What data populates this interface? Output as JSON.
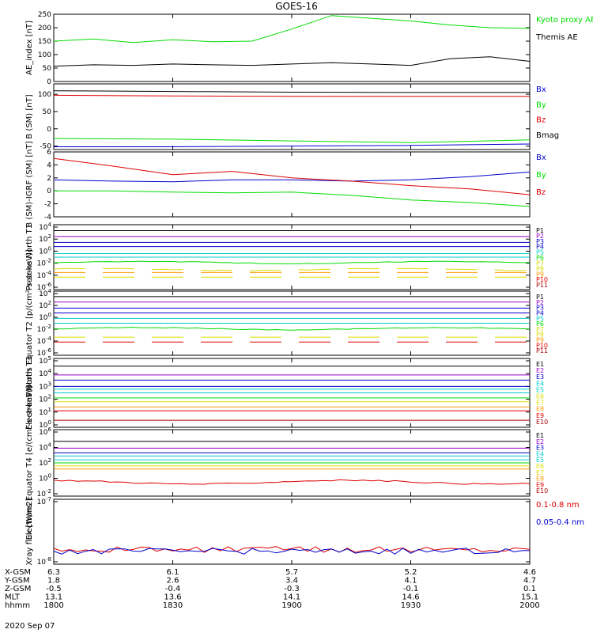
{
  "title": "GOES-16",
  "colors": {
    "axis": "#000000",
    "black": "#000000",
    "red": "#e00000",
    "green": "#00dd00",
    "blue": "#0000cc",
    "cyan": "#00cccc",
    "yellow": "#dddd00",
    "orange": "#ff9900",
    "purple": "#9900cc",
    "darkred": "#aa0000"
  },
  "time_axis": {
    "start": "1800",
    "end": "2000",
    "ticks": [
      "1800",
      "1830",
      "1900",
      "1930",
      "2000"
    ]
  },
  "chart_data": [
    {
      "type": "line",
      "ylabel": "AE_index [nT]",
      "ylim": [
        0,
        250
      ],
      "yticks": [
        "250",
        "200",
        "150",
        "100",
        "50",
        "0"
      ],
      "legend": [
        {
          "label": "Kyoto proxy AE",
          "color": "green"
        },
        {
          "label": "Themis AE",
          "color": "black"
        }
      ],
      "series": [
        {
          "name": "Kyoto proxy AE",
          "color": "green",
          "x": [
            "1800",
            "1810",
            "1820",
            "1830",
            "1840",
            "1850",
            "1900",
            "1910",
            "1920",
            "1930",
            "1940",
            "1950",
            "2000"
          ],
          "values": [
            150,
            158,
            145,
            155,
            148,
            150,
            195,
            245,
            235,
            225,
            210,
            200,
            198
          ]
        },
        {
          "name": "Themis AE",
          "color": "black",
          "x": [
            "1800",
            "1810",
            "1820",
            "1830",
            "1840",
            "1850",
            "1900",
            "1910",
            "1920",
            "1930",
            "1940",
            "1950",
            "2000"
          ],
          "values": [
            57,
            62,
            60,
            65,
            62,
            60,
            65,
            70,
            65,
            60,
            85,
            92,
            75
          ]
        }
      ]
    },
    {
      "type": "line",
      "ylabel": "B (SM) [nT]",
      "ylim": [
        -60,
        130
      ],
      "yticks": [
        "100",
        "50",
        "0",
        "-50"
      ],
      "legend": [
        {
          "label": "Bx",
          "color": "blue"
        },
        {
          "label": "By",
          "color": "green"
        },
        {
          "label": "Bz",
          "color": "red"
        },
        {
          "label": "Bmag",
          "color": "black"
        }
      ],
      "series": [
        {
          "name": "Bx",
          "color": "blue",
          "x": [
            "1800",
            "1830",
            "1900",
            "1930",
            "2000"
          ],
          "values": [
            -52,
            -52,
            -50,
            -48,
            -44
          ]
        },
        {
          "name": "By",
          "color": "green",
          "x": [
            "1800",
            "1830",
            "1900",
            "1930",
            "2000"
          ],
          "values": [
            -28,
            -30,
            -35,
            -40,
            -32
          ]
        },
        {
          "name": "Bz",
          "color": "red",
          "x": [
            "1800",
            "1830",
            "1900",
            "1930",
            "2000"
          ],
          "values": [
            97,
            95,
            94,
            94,
            94
          ]
        },
        {
          "name": "Bmag",
          "color": "black",
          "x": [
            "1800",
            "1830",
            "1900",
            "1930",
            "2000"
          ],
          "values": [
            110,
            108,
            106,
            105,
            105
          ]
        }
      ]
    },
    {
      "type": "line",
      "ylabel": "B (SM)-IGRF (SM) [nT]",
      "ylim": [
        -4,
        6
      ],
      "yticks": [
        "6",
        "4",
        "2",
        "0",
        "-2",
        "-4"
      ],
      "legend": [
        {
          "label": "Bx",
          "color": "blue"
        },
        {
          "label": "By",
          "color": "green"
        },
        {
          "label": "Bz",
          "color": "red"
        }
      ],
      "series": [
        {
          "name": "Bx",
          "color": "blue",
          "x": [
            "1800",
            "1815",
            "1830",
            "1845",
            "1900",
            "1915",
            "1930",
            "1945",
            "2000"
          ],
          "values": [
            1.7,
            1.5,
            1.4,
            1.7,
            1.7,
            1.5,
            1.7,
            2.2,
            2.9
          ]
        },
        {
          "name": "By",
          "color": "green",
          "x": [
            "1800",
            "1815",
            "1830",
            "1845",
            "1900",
            "1915",
            "1930",
            "1945",
            "2000"
          ],
          "values": [
            0.0,
            0.0,
            -0.2,
            -0.3,
            -0.2,
            -0.7,
            -1.4,
            -1.8,
            -2.4
          ]
        },
        {
          "name": "Bz",
          "color": "red",
          "x": [
            "1800",
            "1815",
            "1830",
            "1845",
            "1900",
            "1915",
            "1930",
            "1945",
            "2000"
          ],
          "values": [
            5.0,
            3.8,
            2.5,
            3.0,
            2.0,
            1.5,
            0.8,
            0.3,
            -0.6
          ]
        }
      ]
    },
    {
      "type": "line",
      "log": true,
      "ylabel": "Protons North T1",
      "yticks": [
        "10^4",
        "10^2",
        "10^0",
        "10^-2",
        "10^-4",
        "10^-6"
      ],
      "legend": [
        {
          "label": "P1",
          "color": "black"
        },
        {
          "label": "P2",
          "color": "purple"
        },
        {
          "label": "P3",
          "color": "blue"
        },
        {
          "label": "P4",
          "color": "blue"
        },
        {
          "label": "P5",
          "color": "cyan"
        },
        {
          "label": "P6",
          "color": "green"
        },
        {
          "label": "P7",
          "color": "yellow"
        },
        {
          "label": "P8",
          "color": "yellow"
        },
        {
          "label": "P9",
          "color": "orange"
        },
        {
          "label": "P10",
          "color": "red"
        },
        {
          "label": "P11",
          "color": "darkred"
        }
      ]
    },
    {
      "type": "line",
      "log": true,
      "ylabel": "Protons Equator T2 [p/(cm²-s-sr-keV)]",
      "yticks": [
        "10^4",
        "10^2",
        "10^0",
        "10^-2",
        "10^-4",
        "10^-6"
      ],
      "legend": [
        {
          "label": "P1",
          "color": "black"
        },
        {
          "label": "P2",
          "color": "purple"
        },
        {
          "label": "P3",
          "color": "blue"
        },
        {
          "label": "P4",
          "color": "blue"
        },
        {
          "label": "P5",
          "color": "cyan"
        },
        {
          "label": "P6",
          "color": "green"
        },
        {
          "label": "P7",
          "color": "yellow"
        },
        {
          "label": "P8",
          "color": "yellow"
        },
        {
          "label": "P9",
          "color": "orange"
        },
        {
          "label": "P10",
          "color": "red"
        },
        {
          "label": "P11",
          "color": "darkred"
        }
      ]
    },
    {
      "type": "line",
      "log": true,
      "ylabel": "Electrons North T3",
      "yticks": [
        "10^5",
        "10^4",
        "10^3",
        "10^2",
        "10^1",
        "10^0"
      ],
      "legend": [
        {
          "label": "E1",
          "color": "black"
        },
        {
          "label": "E2",
          "color": "purple"
        },
        {
          "label": "E3",
          "color": "blue"
        },
        {
          "label": "E4",
          "color": "cyan"
        },
        {
          "label": "E5",
          "color": "cyan"
        },
        {
          "label": "E6",
          "color": "yellow"
        },
        {
          "label": "E7",
          "color": "yellow"
        },
        {
          "label": "E8",
          "color": "orange"
        },
        {
          "label": "E9",
          "color": "red"
        },
        {
          "label": "E10",
          "color": "darkred"
        }
      ]
    },
    {
      "type": "line",
      "log": true,
      "ylabel": "Electrons Equator T4 [e/(cm²-s-sr-keV)]",
      "yticks": [
        "10^6",
        "10^4",
        "10^2",
        "10^0",
        "10^-2"
      ],
      "legend": [
        {
          "label": "E1",
          "color": "black"
        },
        {
          "label": "E2",
          "color": "purple"
        },
        {
          "label": "E3",
          "color": "blue"
        },
        {
          "label": "E4",
          "color": "cyan"
        },
        {
          "label": "E5",
          "color": "cyan"
        },
        {
          "label": "E6",
          "color": "yellow"
        },
        {
          "label": "E7",
          "color": "yellow"
        },
        {
          "label": "E8",
          "color": "orange"
        },
        {
          "label": "E9",
          "color": "red"
        },
        {
          "label": "E10",
          "color": "darkred"
        }
      ]
    },
    {
      "type": "line",
      "log": true,
      "ylabel": "Xray flux [W/m2]",
      "yticks": [
        "10^-7",
        "10^-8"
      ],
      "legend": [
        {
          "label": "0.1-0.8 nm",
          "color": "red"
        },
        {
          "label": "0.05-0.4 nm",
          "color": "blue"
        }
      ]
    }
  ],
  "log_panels": [
    {
      "ylog": [
        -6.7,
        4.3
      ],
      "lines": [
        {
          "c": "black",
          "v": 3.3
        },
        {
          "c": "purple",
          "v": 2.3
        },
        {
          "c": "blue",
          "v": 1.3
        },
        {
          "c": "blue",
          "v": 0.6
        },
        {
          "c": "cyan",
          "v": -0.6
        },
        {
          "c": "cyan",
          "v": -1.2
        },
        {
          "c": "green",
          "v": -2.1,
          "wig": 0.3
        },
        {
          "c": "yellow",
          "v": -3.3,
          "wig": 0.3,
          "dash": true
        },
        {
          "c": "orange",
          "v": -3.8,
          "dash": true
        },
        {
          "c": "yellow",
          "v": -4.6,
          "dash": true
        }
      ]
    },
    {
      "ylog": [
        -6.6,
        4.0
      ],
      "lines": [
        {
          "c": "black",
          "v": 3.1
        },
        {
          "c": "purple",
          "v": 2.2
        },
        {
          "c": "blue",
          "v": 1.2
        },
        {
          "c": "blue",
          "v": 0.4
        },
        {
          "c": "cyan",
          "v": -0.5
        },
        {
          "c": "cyan",
          "v": -1.3
        },
        {
          "c": "green",
          "v": -2.2,
          "wig": 0.3
        },
        {
          "c": "yellow",
          "v": -3.6,
          "dash": true
        },
        {
          "c": "red",
          "v": -4.4,
          "dash": true
        }
      ]
    },
    {
      "ylog": [
        -0.2,
        5.2
      ],
      "lines": [
        {
          "c": "black",
          "v": 4.6
        },
        {
          "c": "purple",
          "v": 3.9
        },
        {
          "c": "blue",
          "v": 3.5
        },
        {
          "c": "blue",
          "v": 3.0
        },
        {
          "c": "cyan",
          "v": 2.8
        },
        {
          "c": "cyan",
          "v": 2.5
        },
        {
          "c": "green",
          "v": 2.1
        },
        {
          "c": "yellow",
          "v": 1.8
        },
        {
          "c": "orange",
          "v": 1.4
        },
        {
          "c": "red",
          "v": 1.1
        },
        {
          "c": "darkred",
          "v": 0.35
        }
      ]
    },
    {
      "ylog": [
        -2.6,
        6.0
      ],
      "lines": [
        {
          "c": "black",
          "v": 4.5
        },
        {
          "c": "purple",
          "v": 3.6
        },
        {
          "c": "blue",
          "v": 3.0
        },
        {
          "c": "cyan",
          "v": 2.6
        },
        {
          "c": "cyan",
          "v": 2.1
        },
        {
          "c": "green",
          "v": 1.7
        },
        {
          "c": "yellow",
          "v": 1.3
        },
        {
          "c": "orange",
          "v": 0.9
        },
        {
          "c": "red",
          "v": -0.8,
          "wig": 0.4
        }
      ]
    },
    {
      "ylog": [
        -8.1,
        -7.0
      ],
      "lines": [
        {
          "c": "red",
          "v": -7.85,
          "noise": 0.05
        },
        {
          "c": "blue",
          "v": -7.88,
          "noise": 0.05
        }
      ]
    }
  ],
  "ephemeris": {
    "rows": [
      {
        "label": "X-GSM",
        "values": [
          "6.3",
          "6.1",
          "5.7",
          "5.2",
          "4.6"
        ]
      },
      {
        "label": "Y-GSM",
        "values": [
          "1.8",
          "2.6",
          "3.4",
          "4.1",
          "4.7"
        ]
      },
      {
        "label": "Z-GSM",
        "values": [
          "-0.5",
          "-0.4",
          "-0.3",
          "-0.1",
          "0.1"
        ]
      },
      {
        "label": "MLT",
        "values": [
          "13.1",
          "13.6",
          "14.1",
          "14.6",
          "15.1"
        ]
      },
      {
        "label": "hhmm",
        "values": [
          "1800",
          "1830",
          "1900",
          "1930",
          "2000"
        ]
      }
    ],
    "date": "2020 Sep 07"
  }
}
